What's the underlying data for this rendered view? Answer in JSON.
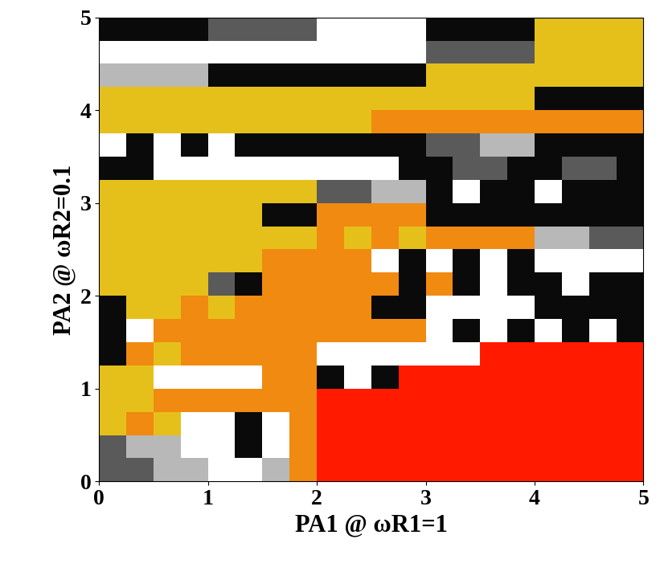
{
  "chart_data": {
    "type": "heatmap",
    "xlabel": "PA1 @ ωR1=1",
    "ylabel": "PA2 @ ωR2=0.1",
    "xlim": [
      0,
      5
    ],
    "ylim": [
      0,
      5
    ],
    "xticks": [
      0,
      1,
      2,
      3,
      4,
      5
    ],
    "yticks": [
      0,
      1,
      2,
      3,
      4,
      5
    ],
    "tick_labels": true,
    "colors": [
      "#ffffff",
      "#b8b8b8",
      "#5a5a5a",
      "#0a0a0a",
      "#e6c01a",
      "#f08a10",
      "#ff1a00"
    ],
    "cells": [
      [
        2,
        2,
        1,
        1,
        0,
        0,
        1,
        5,
        6,
        6,
        6,
        6,
        6,
        6,
        6,
        6,
        6,
        6,
        6,
        6
      ],
      [
        2,
        1,
        1,
        0,
        0,
        3,
        0,
        5,
        6,
        6,
        6,
        6,
        6,
        6,
        6,
        6,
        6,
        6,
        6,
        6
      ],
      [
        4,
        5,
        4,
        0,
        0,
        3,
        0,
        5,
        6,
        6,
        6,
        6,
        6,
        6,
        6,
        6,
        6,
        6,
        6,
        6
      ],
      [
        4,
        4,
        5,
        5,
        5,
        5,
        5,
        5,
        6,
        6,
        6,
        6,
        6,
        6,
        6,
        6,
        6,
        6,
        6,
        6
      ],
      [
        4,
        4,
        0,
        0,
        0,
        0,
        5,
        5,
        3,
        0,
        3,
        6,
        6,
        6,
        6,
        6,
        6,
        6,
        6,
        6
      ],
      [
        3,
        5,
        4,
        5,
        5,
        5,
        5,
        5,
        0,
        0,
        0,
        0,
        0,
        0,
        6,
        6,
        6,
        6,
        6,
        6
      ],
      [
        3,
        0,
        5,
        5,
        5,
        5,
        5,
        5,
        5,
        5,
        5,
        5,
        0,
        3,
        0,
        3,
        0,
        3,
        0,
        3
      ],
      [
        3,
        4,
        4,
        5,
        4,
        5,
        5,
        5,
        5,
        5,
        3,
        3,
        0,
        0,
        0,
        0,
        3,
        3,
        3,
        3
      ],
      [
        4,
        4,
        4,
        4,
        2,
        3,
        5,
        5,
        5,
        5,
        5,
        3,
        5,
        3,
        0,
        3,
        3,
        0,
        3,
        3
      ],
      [
        4,
        4,
        4,
        4,
        4,
        4,
        5,
        5,
        5,
        5,
        0,
        3,
        0,
        3,
        0,
        3,
        0,
        0,
        0,
        0
      ],
      [
        4,
        4,
        4,
        4,
        4,
        4,
        4,
        4,
        5,
        4,
        5,
        4,
        5,
        5,
        5,
        5,
        1,
        1,
        2,
        2
      ],
      [
        4,
        4,
        4,
        4,
        4,
        4,
        3,
        3,
        5,
        5,
        5,
        5,
        3,
        3,
        3,
        3,
        3,
        3,
        3,
        3
      ],
      [
        4,
        4,
        4,
        4,
        4,
        4,
        4,
        4,
        2,
        2,
        1,
        1,
        3,
        0,
        3,
        3,
        0,
        3,
        3,
        3
      ],
      [
        3,
        3,
        0,
        0,
        0,
        0,
        0,
        0,
        0,
        0,
        0,
        3,
        3,
        2,
        2,
        3,
        3,
        2,
        2,
        3
      ],
      [
        0,
        3,
        0,
        3,
        0,
        3,
        3,
        3,
        3,
        3,
        3,
        3,
        2,
        2,
        1,
        1,
        3,
        3,
        3,
        3
      ],
      [
        4,
        4,
        4,
        4,
        4,
        4,
        4,
        4,
        4,
        4,
        5,
        5,
        5,
        5,
        5,
        5,
        5,
        5,
        5,
        5
      ],
      [
        4,
        4,
        4,
        4,
        4,
        4,
        4,
        4,
        4,
        4,
        4,
        4,
        4,
        4,
        4,
        4,
        3,
        3,
        3,
        3
      ],
      [
        1,
        1,
        1,
        1,
        3,
        3,
        3,
        3,
        3,
        3,
        3,
        3,
        4,
        4,
        4,
        4,
        4,
        4,
        4,
        4
      ],
      [
        0,
        0,
        0,
        0,
        0,
        0,
        0,
        0,
        0,
        0,
        0,
        0,
        2,
        2,
        2,
        2,
        4,
        4,
        4,
        4
      ],
      [
        3,
        3,
        3,
        3,
        2,
        2,
        2,
        2,
        0,
        0,
        0,
        0,
        3,
        3,
        3,
        3,
        4,
        4,
        4,
        4
      ]
    ]
  }
}
